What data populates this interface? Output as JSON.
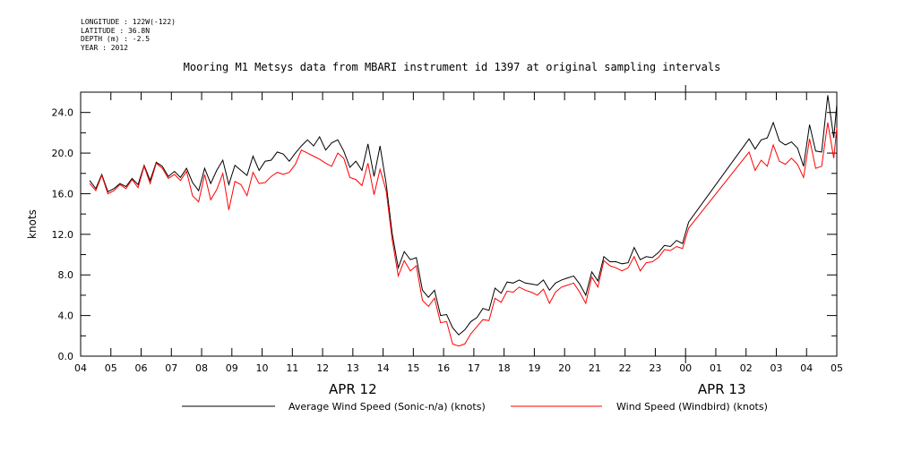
{
  "header": {
    "meta_lines": [
      "LONGITUDE : 122W(-122)",
      "LATITUDE : 36.8N",
      "DEPTH (m) : -2.5",
      "YEAR : 2012"
    ]
  },
  "chart_data": {
    "type": "line",
    "title": "Mooring M1 Metsys data from MBARI instrument id 1397 at original sampling intervals",
    "ylabel": "knots",
    "xlabel": "",
    "ylim": [
      0,
      26
    ],
    "yticks": [
      "0.0",
      "4.0",
      "8.0",
      "12.0",
      "16.0",
      "20.0",
      "24.0"
    ],
    "x_unit": "hours since 04:00 APR 12 2012",
    "xlim": [
      0,
      25
    ],
    "xtick_labels": [
      "04",
      "05",
      "06",
      "07",
      "08",
      "09",
      "10",
      "11",
      "12",
      "13",
      "14",
      "15",
      "16",
      "17",
      "18",
      "19",
      "20",
      "21",
      "22",
      "23",
      "00",
      "01",
      "02",
      "03",
      "04",
      "05"
    ],
    "day_labels": [
      {
        "text": "APR 12",
        "x": 9
      },
      {
        "text": "APR 13",
        "x": 21.2
      }
    ],
    "grid": false,
    "legend_position": "bottom",
    "series": [
      {
        "name": "Average Wind Speed (Sonic-n/a) (knots)",
        "color": "#000000",
        "x": [
          0.3,
          0.5,
          0.7,
          0.9,
          1.1,
          1.3,
          1.5,
          1.7,
          1.9,
          2.1,
          2.3,
          2.5,
          2.7,
          2.9,
          3.1,
          3.3,
          3.5,
          3.7,
          3.9,
          4.1,
          4.3,
          4.5,
          4.7,
          4.9,
          5.1,
          5.3,
          5.5,
          5.7,
          5.9,
          6.1,
          6.3,
          6.5,
          6.7,
          6.9,
          7.1,
          7.3,
          7.5,
          7.7,
          7.9,
          8.1,
          8.3,
          8.5,
          8.7,
          8.9,
          9.1,
          9.3,
          9.5,
          9.7,
          9.9,
          10.1,
          10.3,
          10.5,
          10.7,
          10.9,
          11.1,
          11.3,
          11.5,
          11.7,
          11.9,
          12.1,
          12.3,
          12.5,
          12.7,
          12.9,
          13.1,
          13.3,
          13.5,
          13.7,
          13.9,
          14.1,
          14.3,
          14.5,
          14.7,
          14.9,
          15.1,
          15.3,
          15.5,
          15.7,
          15.9,
          16.1,
          16.3,
          16.5,
          16.7,
          16.9,
          17.1,
          17.3,
          17.5,
          17.7,
          17.9,
          18.1,
          18.3,
          18.5,
          18.7,
          18.9,
          19.1,
          19.3,
          19.5,
          19.7,
          19.9,
          20.1,
          22.1,
          22.3,
          22.5,
          22.7,
          22.9,
          23.1,
          23.3,
          23.5,
          23.7,
          23.9,
          24.1,
          24.3,
          24.5,
          24.7,
          24.9,
          25.0
        ],
        "values": [
          17.3,
          16.5,
          17.9,
          16.2,
          16.5,
          17.0,
          16.7,
          17.5,
          16.9,
          18.8,
          17.3,
          19.1,
          18.7,
          17.7,
          18.2,
          17.6,
          18.5,
          17.1,
          16.3,
          18.5,
          17.0,
          18.3,
          19.3,
          16.9,
          18.8,
          18.3,
          17.8,
          19.7,
          18.3,
          19.2,
          19.3,
          20.1,
          19.9,
          19.2,
          20.0,
          20.7,
          21.3,
          20.7,
          21.6,
          20.3,
          21.0,
          21.3,
          20.2,
          18.6,
          19.2,
          18.3,
          20.9,
          17.7,
          20.7,
          17.0,
          12.1,
          8.7,
          10.3,
          9.5,
          9.7,
          6.5,
          5.8,
          6.5,
          4.0,
          4.1,
          2.8,
          2.1,
          2.6,
          3.4,
          3.8,
          4.7,
          4.5,
          6.7,
          6.2,
          7.3,
          7.2,
          7.5,
          7.2,
          7.1,
          7.0,
          7.5,
          6.5,
          7.2,
          7.5,
          7.7,
          7.9,
          7.1,
          6.0,
          8.3,
          7.4,
          9.8,
          9.3,
          9.3,
          9.1,
          9.2,
          10.7,
          9.5,
          9.8,
          9.7,
          10.2,
          10.9,
          10.8,
          11.4,
          11.1,
          13.2,
          21.4,
          20.4,
          21.3,
          21.5,
          23.0,
          21.2,
          20.8,
          21.1,
          20.5,
          18.7,
          22.8,
          20.2,
          20.1,
          25.7,
          21.5,
          24.8
        ]
      },
      {
        "name": "Wind Speed (Windbird) (knots)",
        "color": "#ff0000",
        "x": [
          0.3,
          0.5,
          0.7,
          0.9,
          1.1,
          1.3,
          1.5,
          1.7,
          1.9,
          2.1,
          2.3,
          2.5,
          2.7,
          2.9,
          3.1,
          3.3,
          3.5,
          3.7,
          3.9,
          4.1,
          4.3,
          4.5,
          4.7,
          4.9,
          5.1,
          5.3,
          5.5,
          5.7,
          5.9,
          6.1,
          6.3,
          6.5,
          6.7,
          6.9,
          7.1,
          7.3,
          7.5,
          7.7,
          7.9,
          8.1,
          8.3,
          8.5,
          8.7,
          8.9,
          9.1,
          9.3,
          9.5,
          9.7,
          9.9,
          10.1,
          10.3,
          10.5,
          10.7,
          10.9,
          11.1,
          11.3,
          11.5,
          11.7,
          11.9,
          12.1,
          12.3,
          12.5,
          12.7,
          12.9,
          13.1,
          13.3,
          13.5,
          13.7,
          13.9,
          14.1,
          14.3,
          14.5,
          14.7,
          14.9,
          15.1,
          15.3,
          15.5,
          15.7,
          15.9,
          16.1,
          16.3,
          16.5,
          16.7,
          16.9,
          17.1,
          17.3,
          17.5,
          17.7,
          17.9,
          18.1,
          18.3,
          18.5,
          18.7,
          18.9,
          19.1,
          19.3,
          19.5,
          19.7,
          19.9,
          20.1,
          22.1,
          22.3,
          22.5,
          22.7,
          22.9,
          23.1,
          23.3,
          23.5,
          23.7,
          23.9,
          24.1,
          24.3,
          24.5,
          24.7,
          24.9,
          25.0
        ],
        "values": [
          17.0,
          16.3,
          17.8,
          16.0,
          16.3,
          16.9,
          16.5,
          17.4,
          16.6,
          18.7,
          17.0,
          19.0,
          18.5,
          17.5,
          17.9,
          17.3,
          18.2,
          15.8,
          15.2,
          17.9,
          15.4,
          16.4,
          18.0,
          14.4,
          17.2,
          16.9,
          15.8,
          18.1,
          17.0,
          17.1,
          17.7,
          18.1,
          17.9,
          18.1,
          18.9,
          20.3,
          20.0,
          19.7,
          19.4,
          19.0,
          18.7,
          20.0,
          19.5,
          17.6,
          17.4,
          16.8,
          19.0,
          15.9,
          18.4,
          16.3,
          11.5,
          7.9,
          9.4,
          8.4,
          8.9,
          5.5,
          4.9,
          5.7,
          3.3,
          3.4,
          1.2,
          1.0,
          1.2,
          2.2,
          2.9,
          3.6,
          3.5,
          5.7,
          5.3,
          6.4,
          6.3,
          6.8,
          6.5,
          6.3,
          6.0,
          6.6,
          5.2,
          6.3,
          6.8,
          7.0,
          7.2,
          6.3,
          5.2,
          7.8,
          6.8,
          9.4,
          8.9,
          8.7,
          8.4,
          8.7,
          9.8,
          8.4,
          9.2,
          9.3,
          9.7,
          10.5,
          10.4,
          10.8,
          10.6,
          12.6,
          20.1,
          18.3,
          19.3,
          18.7,
          20.8,
          19.2,
          18.9,
          19.5,
          18.9,
          17.6,
          21.4,
          18.5,
          18.7,
          23.0,
          19.5,
          22.5
        ]
      }
    ]
  }
}
